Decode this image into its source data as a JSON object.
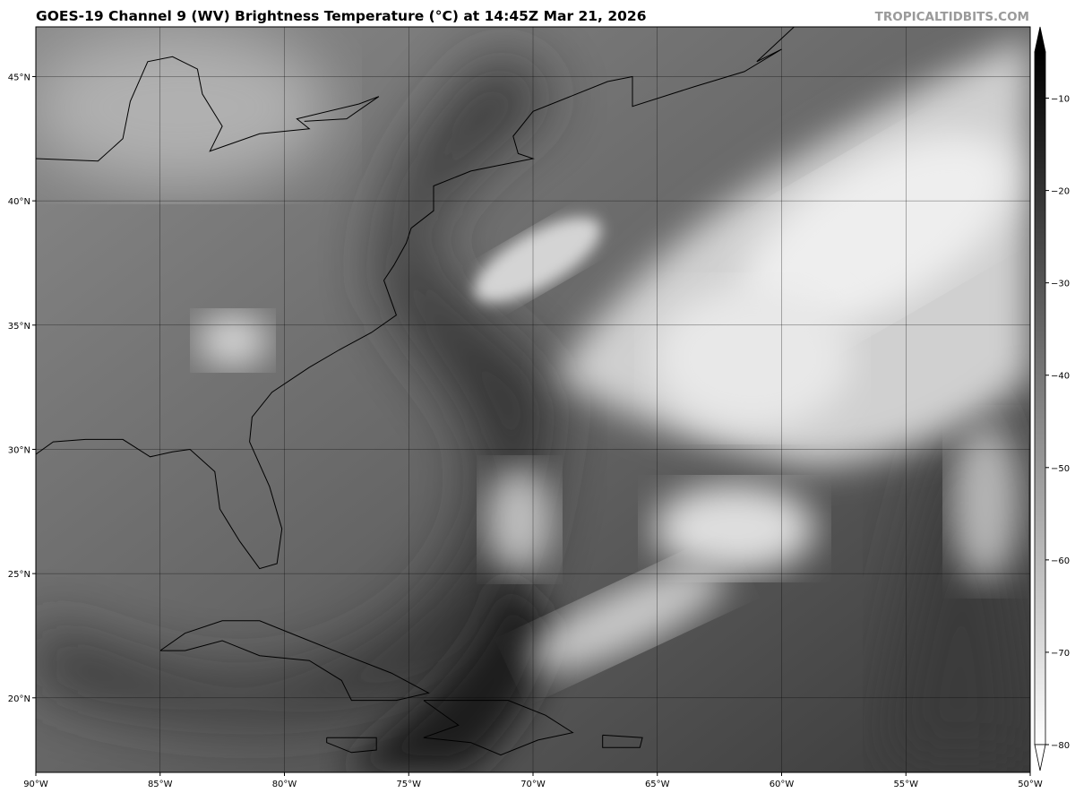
{
  "title": "GOES-19 Channel 9 (WV) Brightness Temperature (°C) at 14:45Z Mar 21, 2026",
  "watermark": "TROPICALTIDBITS.COM",
  "map": {
    "lon_range": [
      -90,
      -50
    ],
    "lat_range": [
      17,
      47
    ],
    "lon_ticks": [
      {
        "value": -90,
        "label": "90°W"
      },
      {
        "value": -85,
        "label": "85°W"
      },
      {
        "value": -80,
        "label": "80°W"
      },
      {
        "value": -75,
        "label": "75°W"
      },
      {
        "value": -70,
        "label": "70°W"
      },
      {
        "value": -65,
        "label": "65°W"
      },
      {
        "value": -60,
        "label": "60°W"
      },
      {
        "value": -55,
        "label": "55°W"
      },
      {
        "value": -50,
        "label": "50°W"
      }
    ],
    "lat_ticks": [
      {
        "value": 45,
        "label": "45°N"
      },
      {
        "value": 40,
        "label": "40°N"
      },
      {
        "value": 35,
        "label": "35°N"
      },
      {
        "value": 30,
        "label": "30°N"
      },
      {
        "value": 25,
        "label": "25°N"
      },
      {
        "value": 20,
        "label": "20°N"
      }
    ]
  },
  "colorbar": {
    "range": [
      -80,
      -5
    ],
    "extend": "both",
    "colormap": "grayscale, white = cold (-80), black = warm",
    "ticks": [
      {
        "value": -10,
        "label": "−10"
      },
      {
        "value": -20,
        "label": "−20"
      },
      {
        "value": -30,
        "label": "−30"
      },
      {
        "value": -40,
        "label": "−40"
      },
      {
        "value": -50,
        "label": "−50"
      },
      {
        "value": -60,
        "label": "−60"
      },
      {
        "value": -70,
        "label": "−70"
      },
      {
        "value": -80,
        "label": "−80"
      }
    ]
  }
}
